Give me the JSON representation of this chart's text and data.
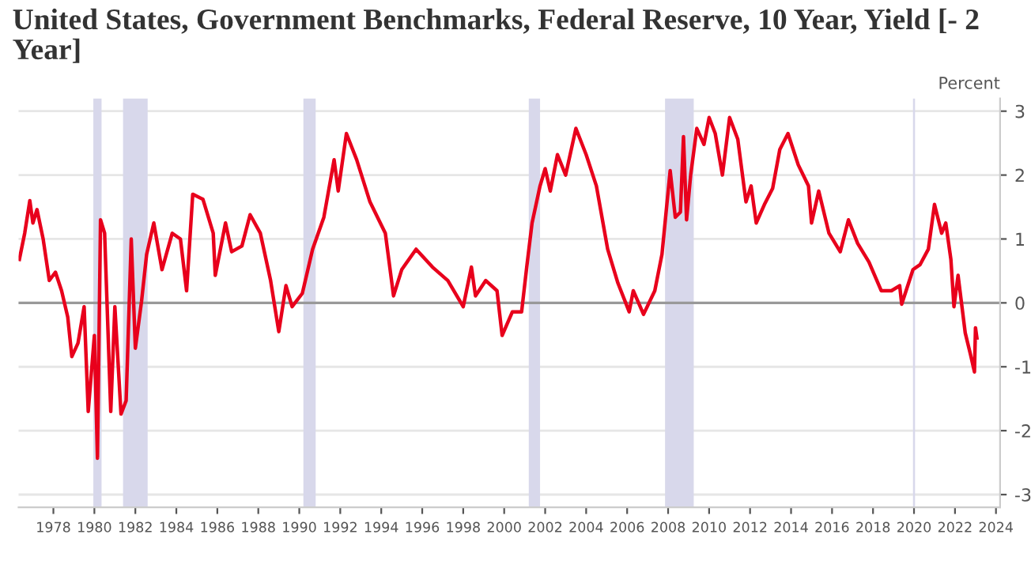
{
  "chart_data": {
    "type": "line",
    "title": "United States, Government Benchmarks, Federal Reserve, 10 Year, Yield [- 2 Year]",
    "ylabel": "Percent",
    "x": [
      1976.34,
      1976.6,
      1976.85,
      1977.0,
      1977.2,
      1977.5,
      1977.8,
      1978.1,
      1978.4,
      1978.7,
      1978.9,
      1979.2,
      1979.5,
      1979.7,
      1980.0,
      1980.15,
      1980.3,
      1980.5,
      1980.8,
      1981.0,
      1981.3,
      1981.55,
      1981.8,
      1982.0,
      1982.3,
      1982.55,
      1982.9,
      1983.3,
      1983.8,
      1984.2,
      1984.5,
      1984.8,
      1985.3,
      1985.8,
      1985.9,
      1986.4,
      1986.7,
      1987.2,
      1987.6,
      1988.1,
      1988.6,
      1989.0,
      1989.35,
      1989.65,
      1990.15,
      1990.65,
      1991.2,
      1991.7,
      1991.9,
      1992.3,
      1992.8,
      1993.45,
      1994.2,
      1994.6,
      1995.0,
      1995.7,
      1996.5,
      1997.25,
      1998.0,
      1998.4,
      1998.6,
      1999.1,
      1999.65,
      1999.9,
      2000.4,
      2000.85,
      2001.1,
      2001.36,
      2001.75,
      2002.0,
      2002.25,
      2002.6,
      2003.0,
      2003.5,
      2004.0,
      2004.5,
      2005.05,
      2005.55,
      2006.1,
      2006.3,
      2006.8,
      2007.35,
      2007.7,
      2008.1,
      2008.35,
      2008.6,
      2008.75,
      2008.9,
      2009.1,
      2009.4,
      2009.75,
      2010.0,
      2010.3,
      2010.65,
      2011.0,
      2011.4,
      2011.8,
      2012.05,
      2012.3,
      2012.7,
      2013.1,
      2013.45,
      2013.85,
      2014.35,
      2014.85,
      2015.0,
      2015.35,
      2015.85,
      2016.4,
      2016.8,
      2017.25,
      2017.8,
      2018.4,
      2018.9,
      2019.3,
      2019.4,
      2019.95,
      2020.3,
      2020.7,
      2021.0,
      2021.35,
      2021.55,
      2021.8,
      2021.95,
      2022.15,
      2022.5,
      2022.75,
      2022.95,
      2023.0,
      2023.07
    ],
    "series": [
      {
        "color": "#e8001c",
        "values": [
          0.68,
          1.09,
          1.6,
          1.25,
          1.46,
          1.0,
          0.35,
          0.48,
          0.19,
          -0.22,
          -0.84,
          -0.63,
          -0.06,
          -1.7,
          -0.51,
          -2.43,
          1.3,
          1.09,
          -1.7,
          -0.06,
          -1.74,
          -1.53,
          1.0,
          -0.71,
          0.02,
          0.76,
          1.25,
          0.52,
          1.09,
          1.0,
          0.19,
          1.7,
          1.62,
          1.09,
          0.43,
          1.25,
          0.8,
          0.89,
          1.38,
          1.09,
          0.35,
          -0.45,
          0.27,
          -0.06,
          0.15,
          0.84,
          1.34,
          2.24,
          1.75,
          2.65,
          2.24,
          1.58,
          1.09,
          0.11,
          0.52,
          0.84,
          0.56,
          0.35,
          -0.06,
          0.56,
          0.11,
          0.35,
          0.19,
          -0.51,
          -0.14,
          -0.14,
          0.56,
          1.25,
          1.83,
          2.1,
          1.75,
          2.32,
          2.0,
          2.73,
          2.32,
          1.83,
          0.84,
          0.31,
          -0.14,
          0.19,
          -0.18,
          0.19,
          0.76,
          2.07,
          1.34,
          1.42,
          2.6,
          1.3,
          2.0,
          2.73,
          2.48,
          2.9,
          2.65,
          2.0,
          2.9,
          2.56,
          1.58,
          1.83,
          1.25,
          1.54,
          1.79,
          2.4,
          2.65,
          2.16,
          1.83,
          1.25,
          1.75,
          1.09,
          0.8,
          1.3,
          0.93,
          0.64,
          0.19,
          0.19,
          0.27,
          -0.02,
          0.52,
          0.6,
          0.84,
          1.54,
          1.09,
          1.25,
          0.68,
          -0.06,
          0.43,
          -0.47,
          -0.8,
          -1.08,
          -0.39,
          -0.55
        ]
      }
    ],
    "xlim": [
      1976.3,
      2024.2
    ],
    "xticks": [
      1978,
      1980,
      1982,
      1984,
      1986,
      1988,
      1990,
      1992,
      1994,
      1996,
      1998,
      2000,
      2002,
      2004,
      2006,
      2008,
      2010,
      2012,
      2014,
      2016,
      2018,
      2020,
      2022,
      2024
    ],
    "ylim": [
      -3.2,
      3.2
    ],
    "yticks": [
      -3,
      -2,
      -1,
      0,
      1,
      2,
      3
    ],
    "grid": "y",
    "line_style": "solid",
    "marker": "none",
    "ref_lines": [
      {
        "axis": "y",
        "value": 0,
        "color": "#999999"
      }
    ],
    "bands": [
      {
        "axis": "x",
        "from": 1979.95,
        "to": 1980.35,
        "color": "#d8d8eb"
      },
      {
        "axis": "x",
        "from": 1981.4,
        "to": 1982.6,
        "color": "#d8d8eb"
      },
      {
        "axis": "x",
        "from": 1990.2,
        "to": 1990.8,
        "color": "#d8d8eb"
      },
      {
        "axis": "x",
        "from": 2001.2,
        "to": 2001.75,
        "color": "#d8d8eb"
      },
      {
        "axis": "x",
        "from": 2007.85,
        "to": 2009.25,
        "color": "#d8d8eb"
      },
      {
        "axis": "x",
        "from": 2019.95,
        "to": 2020.05,
        "color": "#d8d8eb"
      }
    ]
  }
}
